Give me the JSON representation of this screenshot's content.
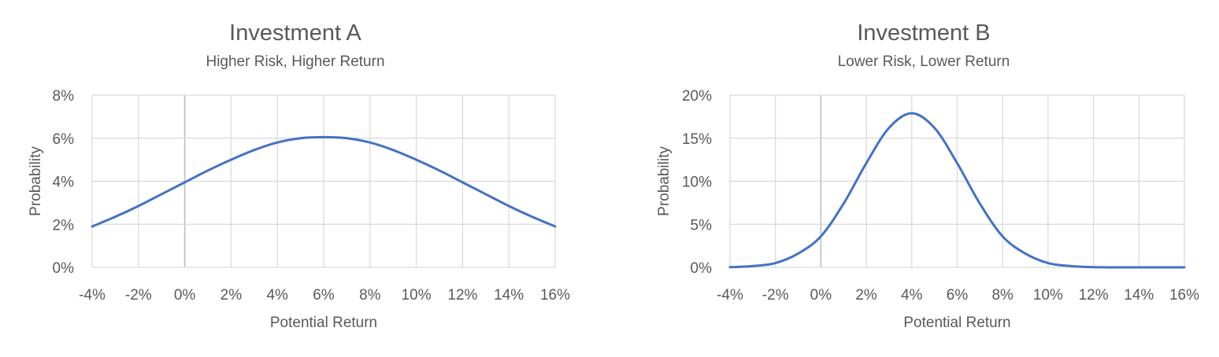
{
  "colors": {
    "line": "#4472C4",
    "grid": "#d9d9d9",
    "zero_axis": "#bfbfbf",
    "text": "#595959"
  },
  "chart_data": [
    {
      "type": "line",
      "title": "Investment A",
      "subtitle": "Higher Risk, Higher Return",
      "xlabel": "Potential Return",
      "ylabel": "Probability",
      "xlim": [
        -4,
        16
      ],
      "ylim": [
        0,
        8
      ],
      "x_ticks": [
        -4,
        -2,
        0,
        2,
        4,
        6,
        8,
        10,
        12,
        14,
        16
      ],
      "x_tick_labels": [
        "-4%",
        "-2%",
        "0%",
        "2%",
        "4%",
        "6%",
        "8%",
        "10%",
        "12%",
        "14%",
        "16%"
      ],
      "y_ticks": [
        0,
        2,
        4,
        6,
        8
      ],
      "y_tick_labels": [
        "0%",
        "2%",
        "4%",
        "6%",
        "8%"
      ],
      "grid": true,
      "series": [
        {
          "x": [
            -4,
            -3,
            -2,
            -1,
            0,
            1,
            2,
            3,
            4,
            5,
            6,
            7,
            8,
            9,
            10,
            11,
            12,
            13,
            14,
            15,
            16
          ],
          "y": [
            1.9,
            2.35,
            2.85,
            3.4,
            3.95,
            4.5,
            5.0,
            5.45,
            5.8,
            6.0,
            6.05,
            6.0,
            5.8,
            5.45,
            5.0,
            4.5,
            3.95,
            3.4,
            2.85,
            2.35,
            1.9
          ]
        }
      ]
    },
    {
      "type": "line",
      "title": "Investment B",
      "subtitle": "Lower Risk, Lower Return",
      "xlabel": "Potential Return",
      "ylabel": "Probability",
      "xlim": [
        -4,
        16
      ],
      "ylim": [
        0,
        20
      ],
      "x_ticks": [
        -4,
        -2,
        0,
        2,
        4,
        6,
        8,
        10,
        12,
        14,
        16
      ],
      "x_tick_labels": [
        "-4%",
        "-2%",
        "0%",
        "2%",
        "4%",
        "6%",
        "8%",
        "10%",
        "12%",
        "14%",
        "16%"
      ],
      "y_ticks": [
        0,
        5,
        10,
        15,
        20
      ],
      "y_tick_labels": [
        "0%",
        "5%",
        "10%",
        "15%",
        "20%"
      ],
      "grid": true,
      "series": [
        {
          "x": [
            -4,
            -3,
            -2,
            -1,
            0,
            1,
            2,
            3,
            4,
            5,
            6,
            7,
            8,
            9,
            10,
            11,
            12,
            13,
            14,
            15,
            16
          ],
          "y": [
            0.02,
            0.15,
            0.5,
            1.6,
            3.6,
            7.4,
            12.1,
            16.2,
            17.9,
            16.2,
            12.1,
            7.4,
            3.6,
            1.6,
            0.5,
            0.15,
            0.02,
            0.0,
            0.0,
            0.0,
            0.0
          ]
        }
      ]
    }
  ]
}
